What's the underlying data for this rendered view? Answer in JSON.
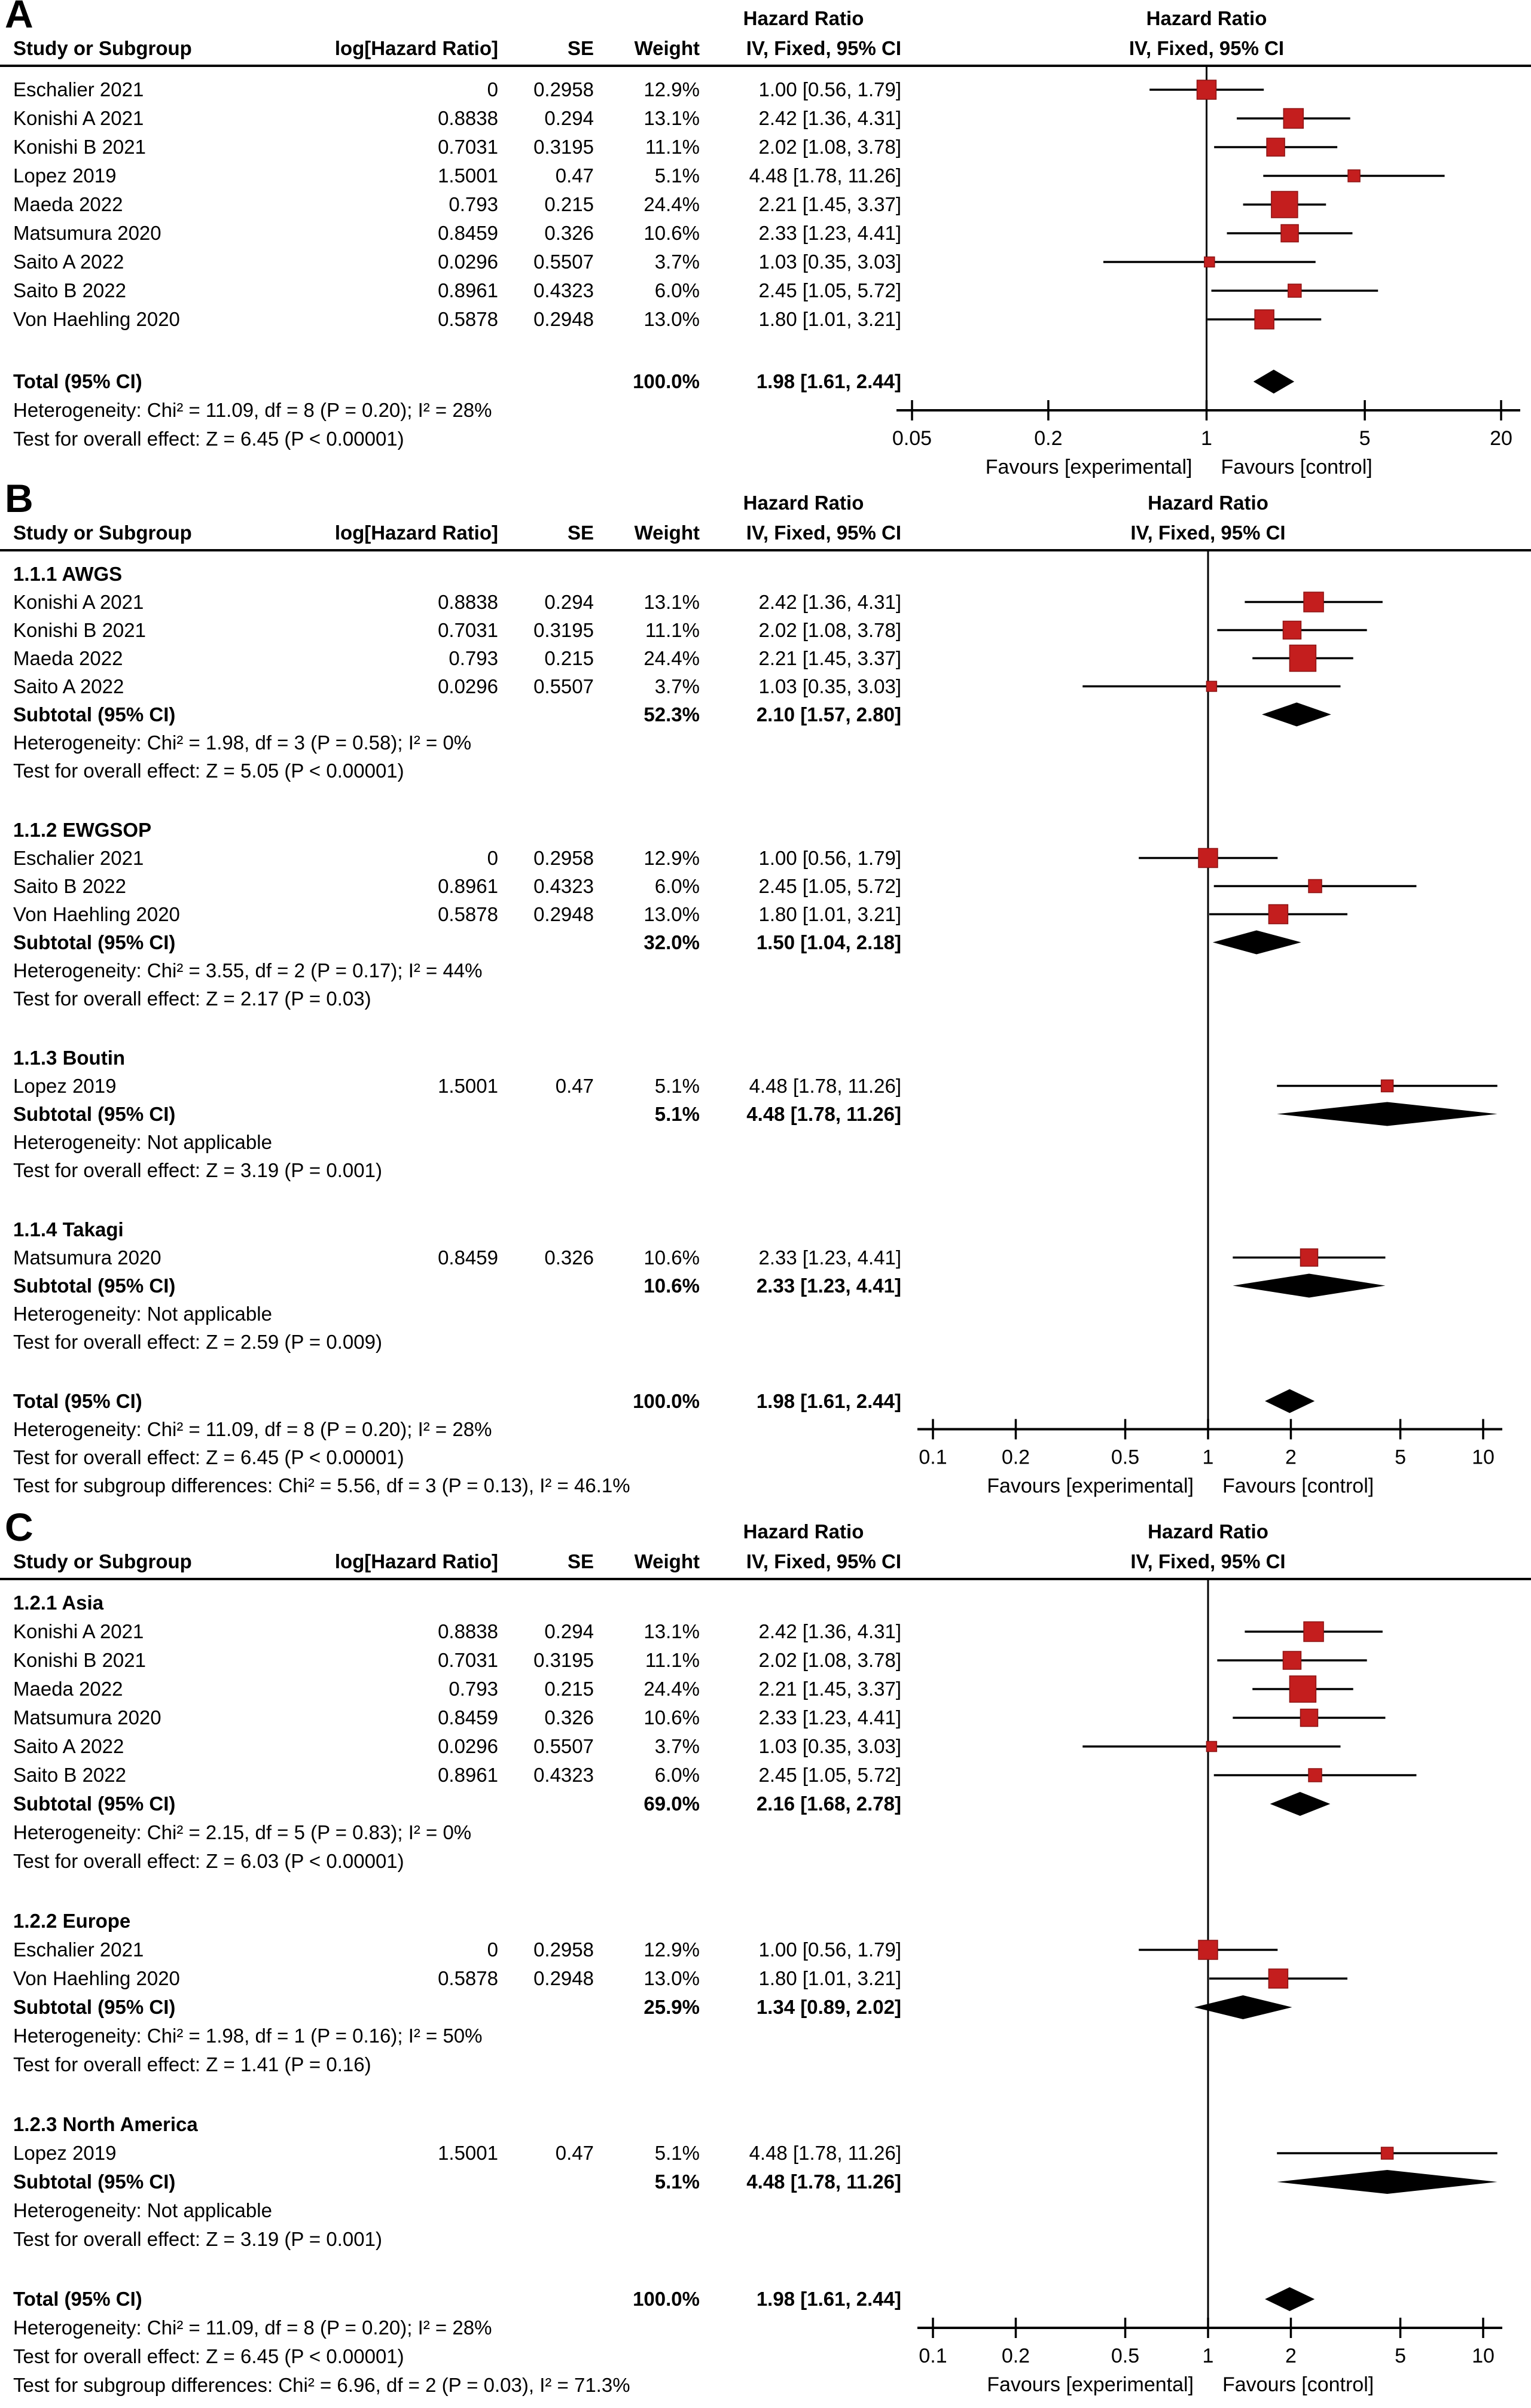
{
  "colors": {
    "marker_fill": "#c41e1e",
    "marker_border": "#8c1414",
    "diamond": "#000000",
    "line": "#000000",
    "text": "#000000",
    "background": "#ffffff"
  },
  "columns": {
    "study": "Study or Subgroup",
    "loghr": "log[Hazard Ratio]",
    "se": "SE",
    "weight": "Weight",
    "hr_title": "Hazard Ratio",
    "ci_method": "IV, Fixed, 95% CI"
  },
  "chart_data": [
    {
      "type": "forest",
      "label": "A",
      "axis": {
        "scale": "log",
        "xlim": [
          0.05,
          20
        ],
        "tick_labels": [
          "0.05",
          "0.2",
          "1",
          "5",
          "20"
        ],
        "favours_left": "Favours [experimental]",
        "favours_right": "Favours [control]"
      },
      "rows": [
        {
          "t": "study",
          "name": "Eschalier 2021",
          "loghr": "0",
          "se": "0.2958",
          "weight": "12.9%",
          "ci": "1.00 [0.56, 1.79]",
          "hr": 1.0,
          "lo": 0.56,
          "hi": 1.79,
          "w": 12.9
        },
        {
          "t": "study",
          "name": "Konishi A 2021",
          "loghr": "0.8838",
          "se": "0.294",
          "weight": "13.1%",
          "ci": "2.42 [1.36, 4.31]",
          "hr": 2.42,
          "lo": 1.36,
          "hi": 4.31,
          "w": 13.1
        },
        {
          "t": "study",
          "name": "Konishi B 2021",
          "loghr": "0.7031",
          "se": "0.3195",
          "weight": "11.1%",
          "ci": "2.02 [1.08, 3.78]",
          "hr": 2.02,
          "lo": 1.08,
          "hi": 3.78,
          "w": 11.1
        },
        {
          "t": "study",
          "name": "Lopez 2019",
          "loghr": "1.5001",
          "se": "0.47",
          "weight": "5.1%",
          "ci": "4.48 [1.78, 11.26]",
          "hr": 4.48,
          "lo": 1.78,
          "hi": 11.26,
          "w": 5.1
        },
        {
          "t": "study",
          "name": "Maeda 2022",
          "loghr": "0.793",
          "se": "0.215",
          "weight": "24.4%",
          "ci": "2.21 [1.45, 3.37]",
          "hr": 2.21,
          "lo": 1.45,
          "hi": 3.37,
          "w": 24.4
        },
        {
          "t": "study",
          "name": "Matsumura 2020",
          "loghr": "0.8459",
          "se": "0.326",
          "weight": "10.6%",
          "ci": "2.33 [1.23, 4.41]",
          "hr": 2.33,
          "lo": 1.23,
          "hi": 4.41,
          "w": 10.6
        },
        {
          "t": "study",
          "name": "Saito A 2022",
          "loghr": "0.0296",
          "se": "0.5507",
          "weight": "3.7%",
          "ci": "1.03 [0.35, 3.03]",
          "hr": 1.03,
          "lo": 0.35,
          "hi": 3.03,
          "w": 3.7
        },
        {
          "t": "study",
          "name": "Saito B 2022",
          "loghr": "0.8961",
          "se": "0.4323",
          "weight": "6.0%",
          "ci": "2.45 [1.05, 5.72]",
          "hr": 2.45,
          "lo": 1.05,
          "hi": 5.72,
          "w": 6.0
        },
        {
          "t": "study",
          "name": "Von Haehling 2020",
          "loghr": "0.5878",
          "se": "0.2948",
          "weight": "13.0%",
          "ci": "1.80 [1.01, 3.21]",
          "hr": 1.8,
          "lo": 1.01,
          "hi": 3.21,
          "w": 13.0
        },
        {
          "t": "gap"
        },
        {
          "t": "total",
          "name": "Total (95% CI)",
          "weight": "100.0%",
          "ci": "1.98 [1.61, 2.44]",
          "hr": 1.98,
          "lo": 1.61,
          "hi": 2.44
        },
        {
          "t": "text",
          "text": "Heterogeneity: Chi² = 11.09, df = 8 (P = 0.20); I² = 28%",
          "axis_here": true
        },
        {
          "t": "text",
          "text": "Test for overall effect: Z = 6.45 (P < 0.00001)"
        }
      ]
    },
    {
      "type": "forest",
      "label": "B",
      "axis": {
        "scale": "log",
        "xlim": [
          0.1,
          10
        ],
        "tick_labels": [
          "0.1",
          "0.2",
          "0.5",
          "1",
          "2",
          "5",
          "10"
        ],
        "favours_left": "Favours [experimental]",
        "favours_right": "Favours [control]"
      },
      "rows": [
        {
          "t": "subheader",
          "text": "1.1.1 AWGS"
        },
        {
          "t": "study",
          "name": "Konishi A 2021",
          "loghr": "0.8838",
          "se": "0.294",
          "weight": "13.1%",
          "ci": "2.42 [1.36, 4.31]",
          "hr": 2.42,
          "lo": 1.36,
          "hi": 4.31,
          "w": 13.1
        },
        {
          "t": "study",
          "name": "Konishi B 2021",
          "loghr": "0.7031",
          "se": "0.3195",
          "weight": "11.1%",
          "ci": "2.02 [1.08, 3.78]",
          "hr": 2.02,
          "lo": 1.08,
          "hi": 3.78,
          "w": 11.1
        },
        {
          "t": "study",
          "name": "Maeda 2022",
          "loghr": "0.793",
          "se": "0.215",
          "weight": "24.4%",
          "ci": "2.21 [1.45, 3.37]",
          "hr": 2.21,
          "lo": 1.45,
          "hi": 3.37,
          "w": 24.4
        },
        {
          "t": "study",
          "name": "Saito A 2022",
          "loghr": "0.0296",
          "se": "0.5507",
          "weight": "3.7%",
          "ci": "1.03 [0.35, 3.03]",
          "hr": 1.03,
          "lo": 0.35,
          "hi": 3.03,
          "w": 3.7
        },
        {
          "t": "subtotal",
          "name": "Subtotal (95% CI)",
          "weight": "52.3%",
          "ci": "2.10 [1.57, 2.80]",
          "hr": 2.1,
          "lo": 1.57,
          "hi": 2.8
        },
        {
          "t": "text",
          "text": "Heterogeneity: Chi² = 1.98, df = 3 (P = 0.58); I² = 0%"
        },
        {
          "t": "text",
          "text": "Test for overall effect: Z = 5.05 (P < 0.00001)"
        },
        {
          "t": "gap"
        },
        {
          "t": "subheader",
          "text": "1.1.2 EWGSOP"
        },
        {
          "t": "study",
          "name": "Eschalier 2021",
          "loghr": "0",
          "se": "0.2958",
          "weight": "12.9%",
          "ci": "1.00 [0.56, 1.79]",
          "hr": 1.0,
          "lo": 0.56,
          "hi": 1.79,
          "w": 12.9
        },
        {
          "t": "study",
          "name": "Saito B 2022",
          "loghr": "0.8961",
          "se": "0.4323",
          "weight": "6.0%",
          "ci": "2.45 [1.05, 5.72]",
          "hr": 2.45,
          "lo": 1.05,
          "hi": 5.72,
          "w": 6.0
        },
        {
          "t": "study",
          "name": "Von Haehling 2020",
          "loghr": "0.5878",
          "se": "0.2948",
          "weight": "13.0%",
          "ci": "1.80 [1.01, 3.21]",
          "hr": 1.8,
          "lo": 1.01,
          "hi": 3.21,
          "w": 13.0
        },
        {
          "t": "subtotal",
          "name": "Subtotal (95% CI)",
          "weight": "32.0%",
          "ci": "1.50 [1.04, 2.18]",
          "hr": 1.5,
          "lo": 1.04,
          "hi": 2.18
        },
        {
          "t": "text",
          "text": "Heterogeneity: Chi² = 3.55, df = 2 (P = 0.17); I² = 44%"
        },
        {
          "t": "text",
          "text": "Test for overall effect: Z = 2.17 (P = 0.03)"
        },
        {
          "t": "gap"
        },
        {
          "t": "subheader",
          "text": "1.1.3 Boutin"
        },
        {
          "t": "study",
          "name": "Lopez 2019",
          "loghr": "1.5001",
          "se": "0.47",
          "weight": "5.1%",
          "ci": "4.48 [1.78, 11.26]",
          "hr": 4.48,
          "lo": 1.78,
          "hi": 11.26,
          "w": 5.1
        },
        {
          "t": "subtotal",
          "name": "Subtotal (95% CI)",
          "weight": "5.1%",
          "ci": "4.48 [1.78, 11.26]",
          "hr": 4.48,
          "lo": 1.78,
          "hi": 11.26
        },
        {
          "t": "text",
          "text": "Heterogeneity: Not applicable"
        },
        {
          "t": "text",
          "text": "Test for overall effect: Z = 3.19 (P = 0.001)"
        },
        {
          "t": "gap"
        },
        {
          "t": "subheader",
          "text": "1.1.4 Takagi"
        },
        {
          "t": "study",
          "name": "Matsumura 2020",
          "loghr": "0.8459",
          "se": "0.326",
          "weight": "10.6%",
          "ci": "2.33 [1.23, 4.41]",
          "hr": 2.33,
          "lo": 1.23,
          "hi": 4.41,
          "w": 10.6
        },
        {
          "t": "subtotal",
          "name": "Subtotal (95% CI)",
          "weight": "10.6%",
          "ci": "2.33 [1.23, 4.41]",
          "hr": 2.33,
          "lo": 1.23,
          "hi": 4.41
        },
        {
          "t": "text",
          "text": "Heterogeneity: Not applicable"
        },
        {
          "t": "text",
          "text": "Test for overall effect: Z = 2.59 (P = 0.009)"
        },
        {
          "t": "gap"
        },
        {
          "t": "total",
          "name": "Total (95% CI)",
          "weight": "100.0%",
          "ci": "1.98 [1.61, 2.44]",
          "hr": 1.98,
          "lo": 1.61,
          "hi": 2.44
        },
        {
          "t": "text",
          "text": "Heterogeneity: Chi² = 11.09, df = 8 (P = 0.20); I² = 28%",
          "axis_here": true
        },
        {
          "t": "text",
          "text": "Test for overall effect: Z = 6.45 (P < 0.00001)"
        },
        {
          "t": "text",
          "text": "Test for subgroup differences: Chi² = 5.56, df = 3 (P = 0.13), I² = 46.1%"
        }
      ]
    },
    {
      "type": "forest",
      "label": "C",
      "axis": {
        "scale": "log",
        "xlim": [
          0.1,
          10
        ],
        "tick_labels": [
          "0.1",
          "0.2",
          "0.5",
          "1",
          "2",
          "5",
          "10"
        ],
        "favours_left": "Favours [experimental]",
        "favours_right": "Favours [control]"
      },
      "rows": [
        {
          "t": "subheader",
          "text": "1.2.1 Asia"
        },
        {
          "t": "study",
          "name": "Konishi A 2021",
          "loghr": "0.8838",
          "se": "0.294",
          "weight": "13.1%",
          "ci": "2.42 [1.36, 4.31]",
          "hr": 2.42,
          "lo": 1.36,
          "hi": 4.31,
          "w": 13.1
        },
        {
          "t": "study",
          "name": "Konishi B 2021",
          "loghr": "0.7031",
          "se": "0.3195",
          "weight": "11.1%",
          "ci": "2.02 [1.08, 3.78]",
          "hr": 2.02,
          "lo": 1.08,
          "hi": 3.78,
          "w": 11.1
        },
        {
          "t": "study",
          "name": "Maeda 2022",
          "loghr": "0.793",
          "se": "0.215",
          "weight": "24.4%",
          "ci": "2.21 [1.45, 3.37]",
          "hr": 2.21,
          "lo": 1.45,
          "hi": 3.37,
          "w": 24.4
        },
        {
          "t": "study",
          "name": "Matsumura 2020",
          "loghr": "0.8459",
          "se": "0.326",
          "weight": "10.6%",
          "ci": "2.33 [1.23, 4.41]",
          "hr": 2.33,
          "lo": 1.23,
          "hi": 4.41,
          "w": 10.6
        },
        {
          "t": "study",
          "name": "Saito A 2022",
          "loghr": "0.0296",
          "se": "0.5507",
          "weight": "3.7%",
          "ci": "1.03 [0.35, 3.03]",
          "hr": 1.03,
          "lo": 0.35,
          "hi": 3.03,
          "w": 3.7
        },
        {
          "t": "study",
          "name": "Saito B 2022",
          "loghr": "0.8961",
          "se": "0.4323",
          "weight": "6.0%",
          "ci": "2.45 [1.05, 5.72]",
          "hr": 2.45,
          "lo": 1.05,
          "hi": 5.72,
          "w": 6.0
        },
        {
          "t": "subtotal",
          "name": "Subtotal (95% CI)",
          "weight": "69.0%",
          "ci": "2.16 [1.68, 2.78]",
          "hr": 2.16,
          "lo": 1.68,
          "hi": 2.78
        },
        {
          "t": "text",
          "text": "Heterogeneity: Chi² = 2.15, df = 5 (P = 0.83); I² = 0%"
        },
        {
          "t": "text",
          "text": "Test for overall effect: Z = 6.03 (P < 0.00001)"
        },
        {
          "t": "gap"
        },
        {
          "t": "subheader",
          "text": "1.2.2 Europe"
        },
        {
          "t": "study",
          "name": "Eschalier 2021",
          "loghr": "0",
          "se": "0.2958",
          "weight": "12.9%",
          "ci": "1.00 [0.56, 1.79]",
          "hr": 1.0,
          "lo": 0.56,
          "hi": 1.79,
          "w": 12.9
        },
        {
          "t": "study",
          "name": "Von Haehling 2020",
          "loghr": "0.5878",
          "se": "0.2948",
          "weight": "13.0%",
          "ci": "1.80 [1.01, 3.21]",
          "hr": 1.8,
          "lo": 1.01,
          "hi": 3.21,
          "w": 13.0
        },
        {
          "t": "subtotal",
          "name": "Subtotal (95% CI)",
          "weight": "25.9%",
          "ci": "1.34 [0.89, 2.02]",
          "hr": 1.34,
          "lo": 0.89,
          "hi": 2.02
        },
        {
          "t": "text",
          "text": "Heterogeneity: Chi² = 1.98, df = 1 (P = 0.16); I² = 50%"
        },
        {
          "t": "text",
          "text": "Test for overall effect: Z = 1.41 (P = 0.16)"
        },
        {
          "t": "gap"
        },
        {
          "t": "subheader",
          "text": "1.2.3 North America"
        },
        {
          "t": "study",
          "name": "Lopez 2019",
          "loghr": "1.5001",
          "se": "0.47",
          "weight": "5.1%",
          "ci": "4.48 [1.78, 11.26]",
          "hr": 4.48,
          "lo": 1.78,
          "hi": 11.26,
          "w": 5.1
        },
        {
          "t": "subtotal",
          "name": "Subtotal (95% CI)",
          "weight": "5.1%",
          "ci": "4.48 [1.78, 11.26]",
          "hr": 4.48,
          "lo": 1.78,
          "hi": 11.26
        },
        {
          "t": "text",
          "text": "Heterogeneity: Not applicable"
        },
        {
          "t": "text",
          "text": "Test for overall effect: Z = 3.19 (P = 0.001)"
        },
        {
          "t": "gap"
        },
        {
          "t": "total",
          "name": "Total (95% CI)",
          "weight": "100.0%",
          "ci": "1.98 [1.61, 2.44]",
          "hr": 1.98,
          "lo": 1.61,
          "hi": 2.44
        },
        {
          "t": "text",
          "text": "Heterogeneity: Chi² = 11.09, df = 8 (P = 0.20); I² = 28%",
          "axis_here": true
        },
        {
          "t": "text",
          "text": "Test for overall effect: Z = 6.45 (P < 0.00001)"
        },
        {
          "t": "text",
          "text": "Test for subgroup differences: Chi² = 6.96, df = 2 (P = 0.03), I² = 71.3%"
        }
      ]
    }
  ]
}
